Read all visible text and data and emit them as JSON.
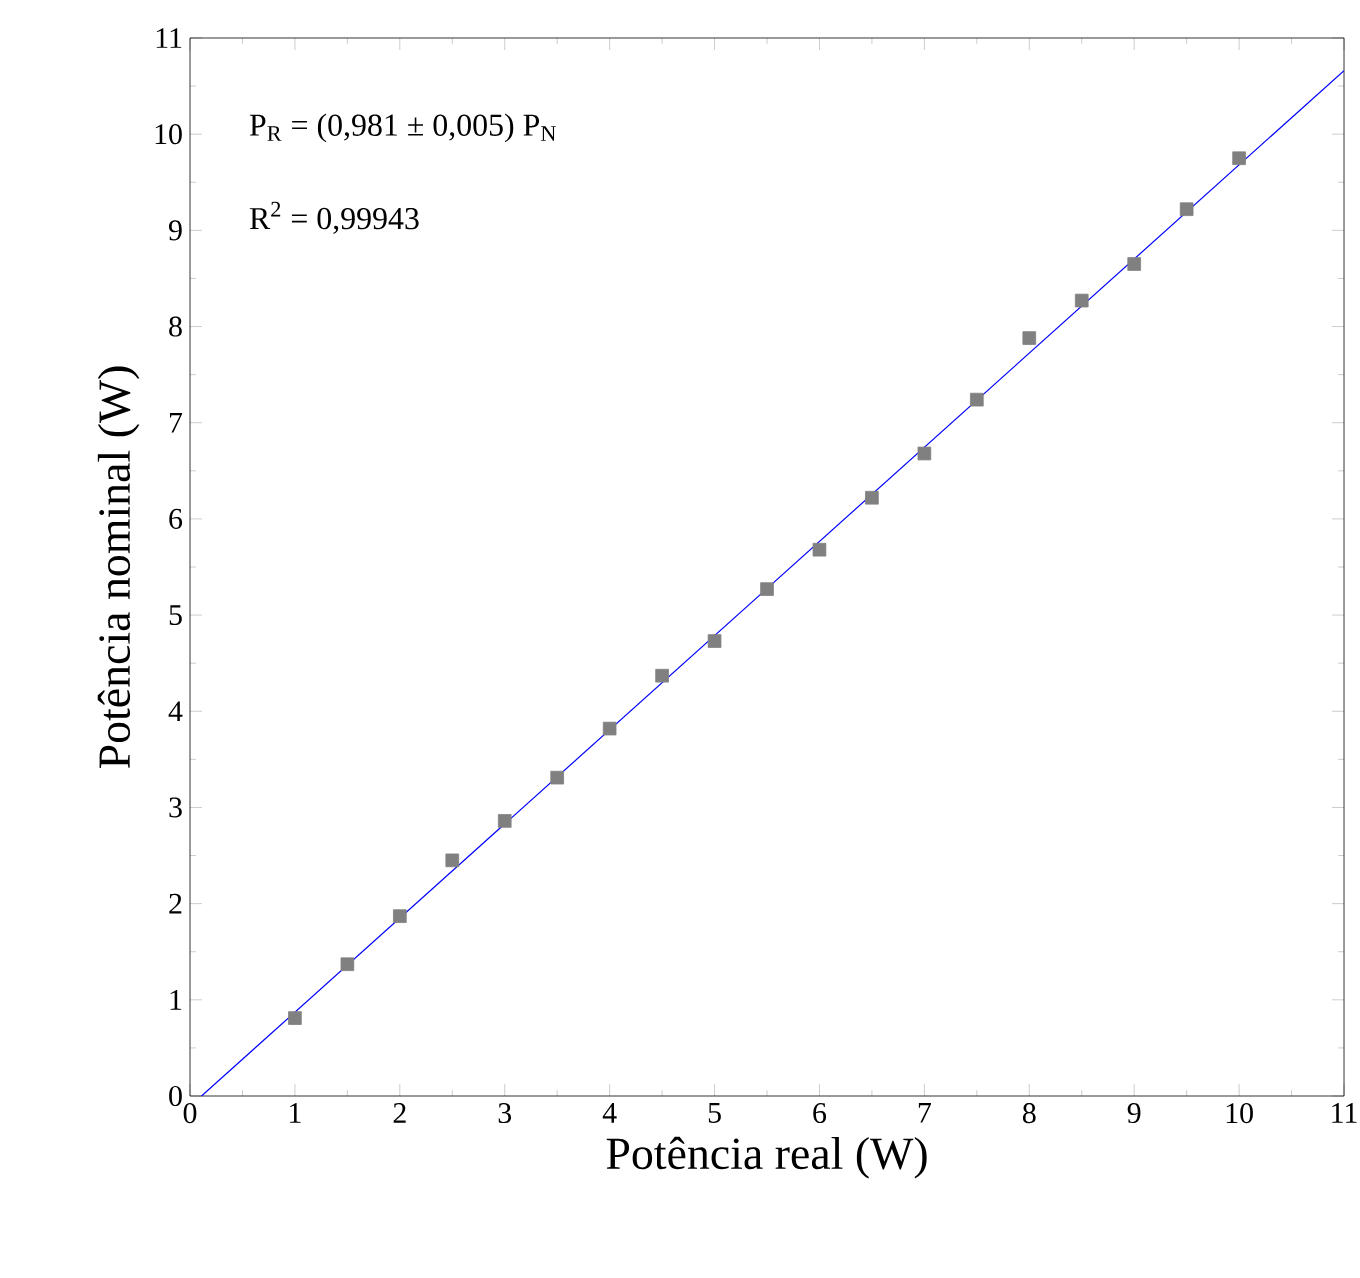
{
  "chart_data": {
    "type": "scatter",
    "xlabel": "Potência real (W)",
    "ylabel": "Potência nominal (W)",
    "xlim": [
      0,
      11
    ],
    "ylim": [
      0,
      11
    ],
    "xticks": [
      0,
      1,
      2,
      3,
      4,
      5,
      6,
      7,
      8,
      9,
      10,
      11
    ],
    "yticks": [
      0,
      1,
      2,
      3,
      4,
      5,
      6,
      7,
      8,
      9,
      10,
      11
    ],
    "marker": "square",
    "series": [
      {
        "type": "scatter",
        "color": "#808080",
        "x": [
          1,
          1.5,
          2,
          2.5,
          3,
          3.5,
          4,
          4.5,
          5,
          5.5,
          6,
          6.5,
          7,
          7.5,
          8,
          8.5,
          9,
          9.5,
          10
        ],
        "values": [
          0.81,
          1.37,
          1.87,
          2.45,
          2.86,
          3.31,
          3.82,
          4.37,
          4.73,
          5.27,
          5.68,
          6.22,
          6.68,
          7.24,
          7.88,
          8.27,
          8.65,
          9.22,
          9.75
        ]
      },
      {
        "type": "line",
        "color": "#0000ff",
        "marker": "none",
        "line_style": "solid",
        "x": [
          0.11,
          11
        ],
        "values": [
          0,
          10.66
        ]
      }
    ],
    "annotations": [
      "P$_{R}$ = (0,981 ± 0,005) P$_{N}$",
      "R$^{2}$ = 0,99943"
    ]
  }
}
